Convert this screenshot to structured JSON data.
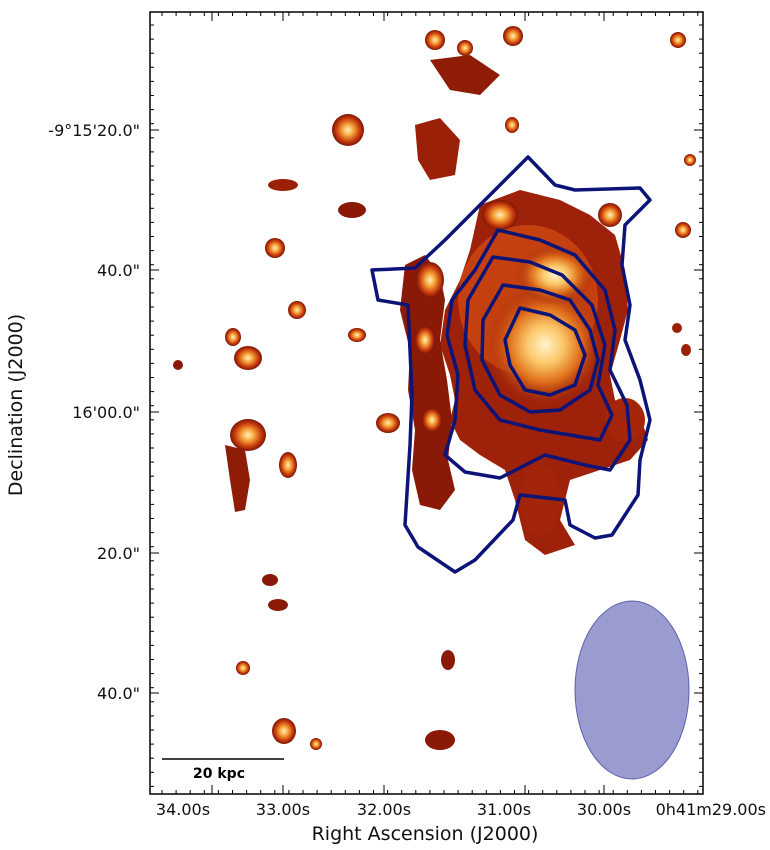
{
  "chart_data": {
    "type": "image",
    "xlabel": "Right Ascension (J2000)",
    "ylabel": "Declination (J2000)",
    "x_ticks": [
      "34.00s",
      "33.00s",
      "32.00s",
      "31.00s",
      "30.00s",
      "0h41m29.00s"
    ],
    "y_ticks": [
      "-9°15'20.0\"",
      "40.0\"",
      "16'00.0\"",
      "20.0\"",
      "40.0\""
    ],
    "scale_bar": "20 kpc",
    "colormap": [
      "#6e1005",
      "#a8260a",
      "#d85a10",
      "#f39a30",
      "#ffe6a0"
    ],
    "contour_color": "#0d1478",
    "beam_color": "#9a9cd0"
  }
}
